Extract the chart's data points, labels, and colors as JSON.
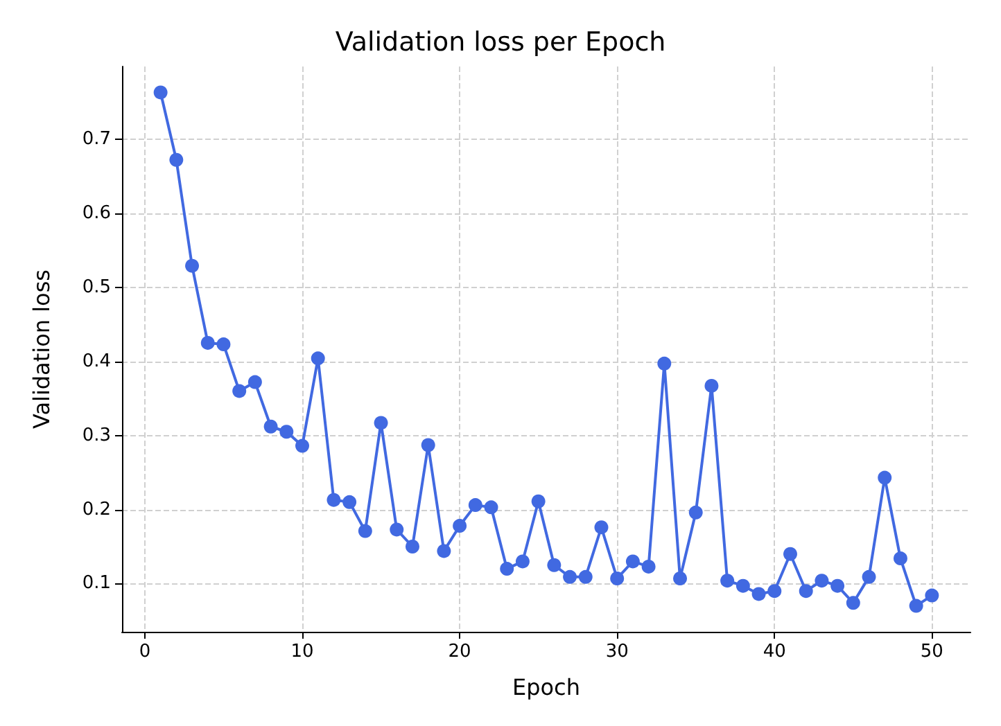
{
  "chart_data": {
    "type": "line",
    "title": "Validation loss per Epoch",
    "xlabel": "Epoch",
    "ylabel": "Validation loss",
    "x": [
      1,
      2,
      3,
      4,
      5,
      6,
      7,
      8,
      9,
      10,
      11,
      12,
      13,
      14,
      15,
      16,
      17,
      18,
      19,
      20,
      21,
      22,
      23,
      24,
      25,
      26,
      27,
      28,
      29,
      30,
      31,
      32,
      33,
      34,
      35,
      36,
      37,
      38,
      39,
      40,
      41,
      42,
      43,
      44,
      45,
      46,
      47,
      48,
      49,
      50
    ],
    "series": [
      {
        "color": "#4169e1",
        "values": [
          0.763,
          0.672,
          0.529,
          0.425,
          0.423,
          0.36,
          0.372,
          0.312,
          0.305,
          0.286,
          0.404,
          0.213,
          0.21,
          0.171,
          0.317,
          0.173,
          0.15,
          0.287,
          0.144,
          0.178,
          0.206,
          0.203,
          0.12,
          0.13,
          0.211,
          0.125,
          0.109,
          0.109,
          0.176,
          0.107,
          0.13,
          0.123,
          0.397,
          0.107,
          0.196,
          0.367,
          0.104,
          0.097,
          0.086,
          0.09,
          0.14,
          0.09,
          0.104,
          0.097,
          0.074,
          0.109,
          0.243,
          0.134,
          0.07,
          0.084
        ]
      }
    ],
    "xlim": [
      -1.45,
      52.45
    ],
    "xticks": [
      0,
      10,
      20,
      30,
      40,
      50
    ],
    "ylim": [
      0.035,
      0.798
    ],
    "yticks": [
      0.1,
      0.2,
      0.3,
      0.4,
      0.5,
      0.6,
      0.7
    ],
    "grid": true,
    "marker": "circle",
    "line_style": "solid"
  }
}
